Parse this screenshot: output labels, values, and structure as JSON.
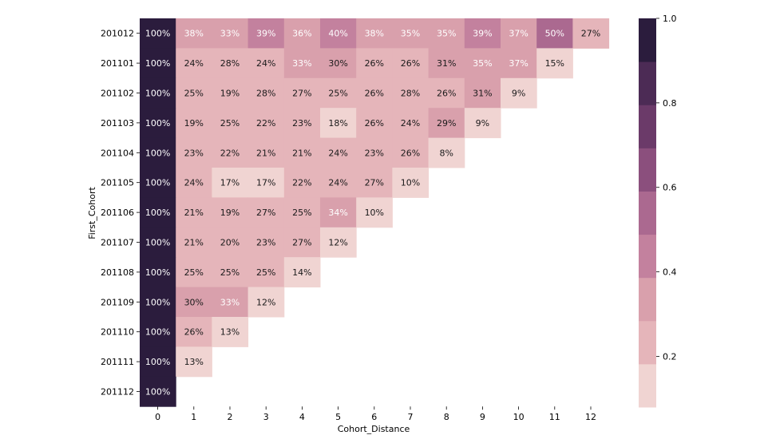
{
  "chart_data": {
    "type": "heatmap",
    "title": "",
    "xlabel": "Cohort_Distance",
    "ylabel": "First_Cohort",
    "x_categories": [
      "0",
      "1",
      "2",
      "3",
      "4",
      "5",
      "6",
      "7",
      "8",
      "9",
      "10",
      "11",
      "12"
    ],
    "y_categories": [
      "201012",
      "201101",
      "201102",
      "201103",
      "201104",
      "201105",
      "201106",
      "201107",
      "201108",
      "201109",
      "201110",
      "201111",
      "201112"
    ],
    "values": [
      [
        1.0,
        0.38,
        0.33,
        0.39,
        0.36,
        0.4,
        0.38,
        0.35,
        0.35,
        0.39,
        0.37,
        0.5,
        0.27
      ],
      [
        1.0,
        0.24,
        0.28,
        0.24,
        0.33,
        0.3,
        0.26,
        0.26,
        0.31,
        0.35,
        0.37,
        0.15,
        null
      ],
      [
        1.0,
        0.25,
        0.19,
        0.28,
        0.27,
        0.25,
        0.26,
        0.28,
        0.26,
        0.31,
        0.09,
        null,
        null
      ],
      [
        1.0,
        0.19,
        0.25,
        0.22,
        0.23,
        0.18,
        0.26,
        0.24,
        0.29,
        0.09,
        null,
        null,
        null
      ],
      [
        1.0,
        0.23,
        0.22,
        0.21,
        0.21,
        0.24,
        0.23,
        0.26,
        0.08,
        null,
        null,
        null,
        null
      ],
      [
        1.0,
        0.24,
        0.17,
        0.17,
        0.22,
        0.24,
        0.27,
        0.1,
        null,
        null,
        null,
        null,
        null
      ],
      [
        1.0,
        0.21,
        0.19,
        0.27,
        0.25,
        0.34,
        0.1,
        null,
        null,
        null,
        null,
        null,
        null
      ],
      [
        1.0,
        0.21,
        0.2,
        0.23,
        0.27,
        0.12,
        null,
        null,
        null,
        null,
        null,
        null,
        null
      ],
      [
        1.0,
        0.25,
        0.25,
        0.25,
        0.14,
        null,
        null,
        null,
        null,
        null,
        null,
        null,
        null
      ],
      [
        1.0,
        0.3,
        0.33,
        0.12,
        null,
        null,
        null,
        null,
        null,
        null,
        null,
        null,
        null
      ],
      [
        1.0,
        0.26,
        0.13,
        null,
        null,
        null,
        null,
        null,
        null,
        null,
        null,
        null,
        null
      ],
      [
        1.0,
        0.13,
        null,
        null,
        null,
        null,
        null,
        null,
        null,
        null,
        null,
        null,
        null
      ],
      [
        1.0,
        null,
        null,
        null,
        null,
        null,
        null,
        null,
        null,
        null,
        null,
        null,
        null
      ]
    ],
    "value_labels": [
      [
        "100%",
        "38%",
        "33%",
        "39%",
        "36%",
        "40%",
        "38%",
        "35%",
        "35%",
        "39%",
        "37%",
        "50%",
        "27%"
      ],
      [
        "100%",
        "24%",
        "28%",
        "24%",
        "33%",
        "30%",
        "26%",
        "26%",
        "31%",
        "35%",
        "37%",
        "15%",
        null
      ],
      [
        "100%",
        "25%",
        "19%",
        "28%",
        "27%",
        "25%",
        "26%",
        "28%",
        "26%",
        "31%",
        "9%",
        null,
        null
      ],
      [
        "100%",
        "19%",
        "25%",
        "22%",
        "23%",
        "18%",
        "26%",
        "24%",
        "29%",
        "9%",
        null,
        null,
        null
      ],
      [
        "100%",
        "23%",
        "22%",
        "21%",
        "21%",
        "24%",
        "23%",
        "26%",
        "8%",
        null,
        null,
        null,
        null
      ],
      [
        "100%",
        "24%",
        "17%",
        "17%",
        "22%",
        "24%",
        "27%",
        "10%",
        null,
        null,
        null,
        null,
        null
      ],
      [
        "100%",
        "21%",
        "19%",
        "27%",
        "25%",
        "34%",
        "10%",
        null,
        null,
        null,
        null,
        null,
        null
      ],
      [
        "100%",
        "21%",
        "20%",
        "23%",
        "27%",
        "12%",
        null,
        null,
        null,
        null,
        null,
        null,
        null
      ],
      [
        "100%",
        "25%",
        "25%",
        "25%",
        "14%",
        null,
        null,
        null,
        null,
        null,
        null,
        null,
        null
      ],
      [
        "100%",
        "30%",
        "33%",
        "12%",
        null,
        null,
        null,
        null,
        null,
        null,
        null,
        null,
        null
      ],
      [
        "100%",
        "26%",
        "13%",
        null,
        null,
        null,
        null,
        null,
        null,
        null,
        null,
        null,
        null
      ],
      [
        "100%",
        "13%",
        null,
        null,
        null,
        null,
        null,
        null,
        null,
        null,
        null,
        null,
        null
      ],
      [
        "100%",
        null,
        null,
        null,
        null,
        null,
        null,
        null,
        null,
        null,
        null,
        null,
        null
      ]
    ],
    "colorbar": {
      "min": 0.08,
      "max": 1.0,
      "ticks": [
        0.2,
        0.4,
        0.6,
        0.8,
        1.0
      ],
      "tick_labels": [
        "0.2",
        "0.4",
        "0.6",
        "0.8",
        "1.0"
      ],
      "bins": [
        "#f0d4d2",
        "#e5b5ba",
        "#d9a0ac",
        "#c3819e",
        "#ab6990",
        "#8b4f7d",
        "#6b3a69",
        "#4c2b55",
        "#2b1c3d"
      ]
    },
    "grid": false,
    "legend": "colorbar-right"
  }
}
